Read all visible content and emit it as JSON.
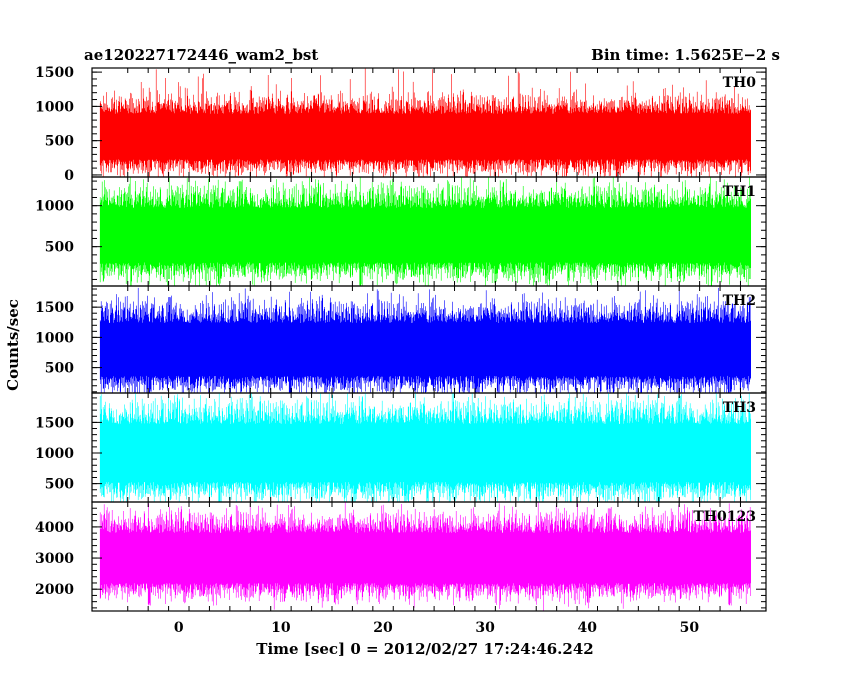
{
  "header": {
    "left_title": "ae120227172446_wam2_bst",
    "right_title": "Bin time: 1.5625E−2 s"
  },
  "chart_data": {
    "type": "line",
    "xlabel": "Time [sec] 0 = 2012/02/27 17:24:46.242",
    "ylabel": "Counts/sec",
    "xlim": [
      -8.5,
      57.5
    ],
    "x_ticks": [
      0,
      10,
      20,
      30,
      40,
      50
    ],
    "x_tick_labels": [
      "0",
      "10",
      "20",
      "30",
      "40",
      "50"
    ],
    "data_x_range": [
      -7.7,
      56.0
    ],
    "bin_time_s": 0.015625,
    "panels": [
      {
        "name": "TH0",
        "color": "#ff0000",
        "ylim": [
          -30,
          1560
        ],
        "y_ticks": [
          0,
          500,
          1000,
          1500
        ],
        "y_tick_labels": [
          "0",
          "500",
          "1000",
          "1500"
        ],
        "mean": 560,
        "typical_low": 150,
        "typical_high": 1100,
        "max": 1560
      },
      {
        "name": "TH1",
        "color": "#00ff00",
        "ylim": [
          20,
          1350
        ],
        "y_ticks": [
          500,
          1000
        ],
        "y_tick_labels": [
          "500",
          "1000"
        ],
        "mean": 640,
        "typical_low": 200,
        "typical_high": 1150,
        "max": 1350
      },
      {
        "name": "TH2",
        "color": "#0000ff",
        "ylim": [
          80,
          1850
        ],
        "y_ticks": [
          500,
          1000,
          1500
        ],
        "y_tick_labels": [
          "500",
          "1000",
          "1500"
        ],
        "mean": 800,
        "typical_low": 250,
        "typical_high": 1500,
        "max": 1850
      },
      {
        "name": "TH3",
        "color": "#00ffff",
        "ylim": [
          200,
          1980
        ],
        "y_ticks": [
          500,
          1000,
          1500
        ],
        "y_tick_labels": [
          "500",
          "1000",
          "1500"
        ],
        "mean": 1000,
        "typical_low": 400,
        "typical_high": 1750,
        "max": 1980
      },
      {
        "name": "TH0123",
        "color": "#ff00ff",
        "ylim": [
          1300,
          4800
        ],
        "y_ticks": [
          2000,
          3000,
          4000
        ],
        "y_tick_labels": [
          "2000",
          "3000",
          "4000"
        ],
        "mean": 3000,
        "typical_low": 1900,
        "typical_high": 4200,
        "max": 4800
      }
    ]
  }
}
